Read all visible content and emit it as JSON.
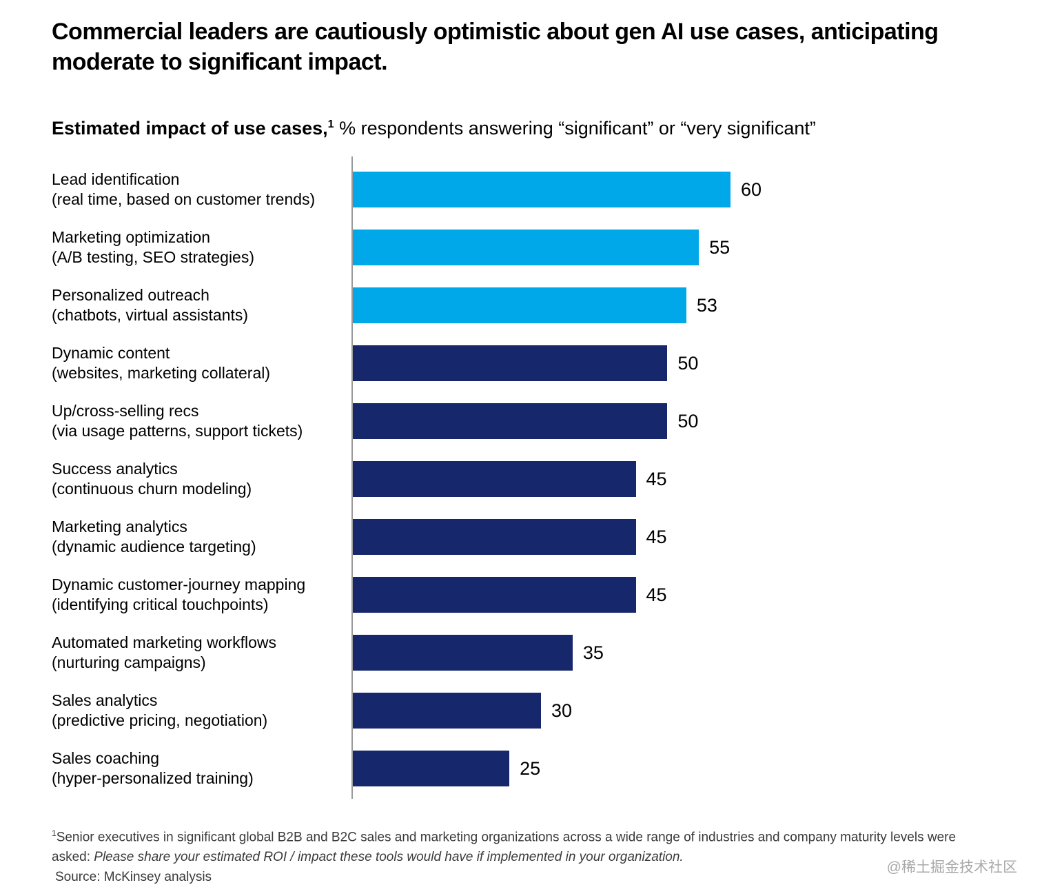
{
  "title": "Commercial leaders are cautiously optimistic about gen AI use cases, anticipating moderate to significant impact.",
  "subtitle": {
    "bold": "Estimated impact of use cases,",
    "superscript": "1",
    "rest": " % respondents answering “significant” or “very significant”"
  },
  "chart_data": {
    "type": "bar",
    "orientation": "horizontal",
    "xlim": [
      0,
      60
    ],
    "grid": false,
    "legend": false,
    "colors": {
      "light": "#00A8EA",
      "dark": "#16276C"
    },
    "rows": [
      {
        "label": "Lead identification",
        "sublabel": "(real time, based on customer trends)",
        "value": 60,
        "color": "light"
      },
      {
        "label": "Marketing optimization",
        "sublabel": "(A/B testing, SEO strategies)",
        "value": 55,
        "color": "light"
      },
      {
        "label": "Personalized outreach",
        "sublabel": "(chatbots, virtual assistants)",
        "value": 53,
        "color": "light"
      },
      {
        "label": "Dynamic content",
        "sublabel": "(websites, marketing collateral)",
        "value": 50,
        "color": "dark"
      },
      {
        "label": "Up/cross-selling recs",
        "sublabel": "(via usage patterns, support tickets)",
        "value": 50,
        "color": "dark"
      },
      {
        "label": "Success analytics",
        "sublabel": "(continuous churn modeling)",
        "value": 45,
        "color": "dark"
      },
      {
        "label": "Marketing analytics",
        "sublabel": "(dynamic audience targeting)",
        "value": 45,
        "color": "dark"
      },
      {
        "label": "Dynamic customer-journey mapping",
        "sublabel": "(identifying critical touchpoints)",
        "value": 45,
        "color": "dark"
      },
      {
        "label": "Automated marketing workflows",
        "sublabel": "(nurturing campaigns)",
        "value": 35,
        "color": "dark"
      },
      {
        "label": "Sales analytics",
        "sublabel": "(predictive pricing, negotiation)",
        "value": 30,
        "color": "dark"
      },
      {
        "label": "Sales coaching",
        "sublabel": "(hyper-personalized training)",
        "value": 25,
        "color": "dark"
      }
    ]
  },
  "footnote": {
    "superscript": "1",
    "text_before_italic": "Senior executives in significant global B2B and B2C sales and marketing organizations across a wide range of industries and company maturity levels were asked: ",
    "italic": "Please share your estimated ROI / impact these tools would have if implemented in your organization.",
    "source": "Source: McKinsey analysis"
  },
  "watermark": "@稀土掘金技术社区"
}
